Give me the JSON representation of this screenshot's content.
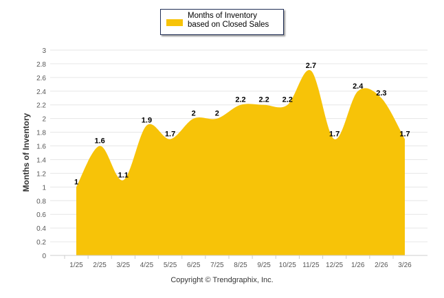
{
  "chart_data": {
    "type": "area",
    "title": "",
    "xlabel": "",
    "ylabel": "Months of Inventory",
    "legend": [
      "Months of Inventory based on Closed Sales"
    ],
    "legend_placement": "top-center",
    "categories": [
      "1/25",
      "2/25",
      "3/25",
      "4/25",
      "5/25",
      "6/25",
      "7/25",
      "8/25",
      "9/25",
      "10/25",
      "11/25",
      "12/25",
      "1/26",
      "2/26",
      "3/26"
    ],
    "series": [
      {
        "name": "Months of Inventory based on Closed Sales",
        "values": [
          1,
          1.6,
          1.1,
          1.9,
          1.7,
          2,
          2,
          2.2,
          2.2,
          2.2,
          2.7,
          1.7,
          2.4,
          2.3,
          1.7
        ]
      }
    ],
    "ylim": [
      0,
      3
    ],
    "yticks": [
      "0",
      "0.2",
      "0.4",
      "0.6",
      "0.8",
      "1",
      "1.2",
      "1.4",
      "1.6",
      "1.8",
      "2",
      "2.2",
      "2.4",
      "2.6",
      "2.8",
      "3"
    ],
    "grid": true,
    "color": "#f7c308"
  },
  "footer": "Copyright © Trendgraphix, Inc."
}
